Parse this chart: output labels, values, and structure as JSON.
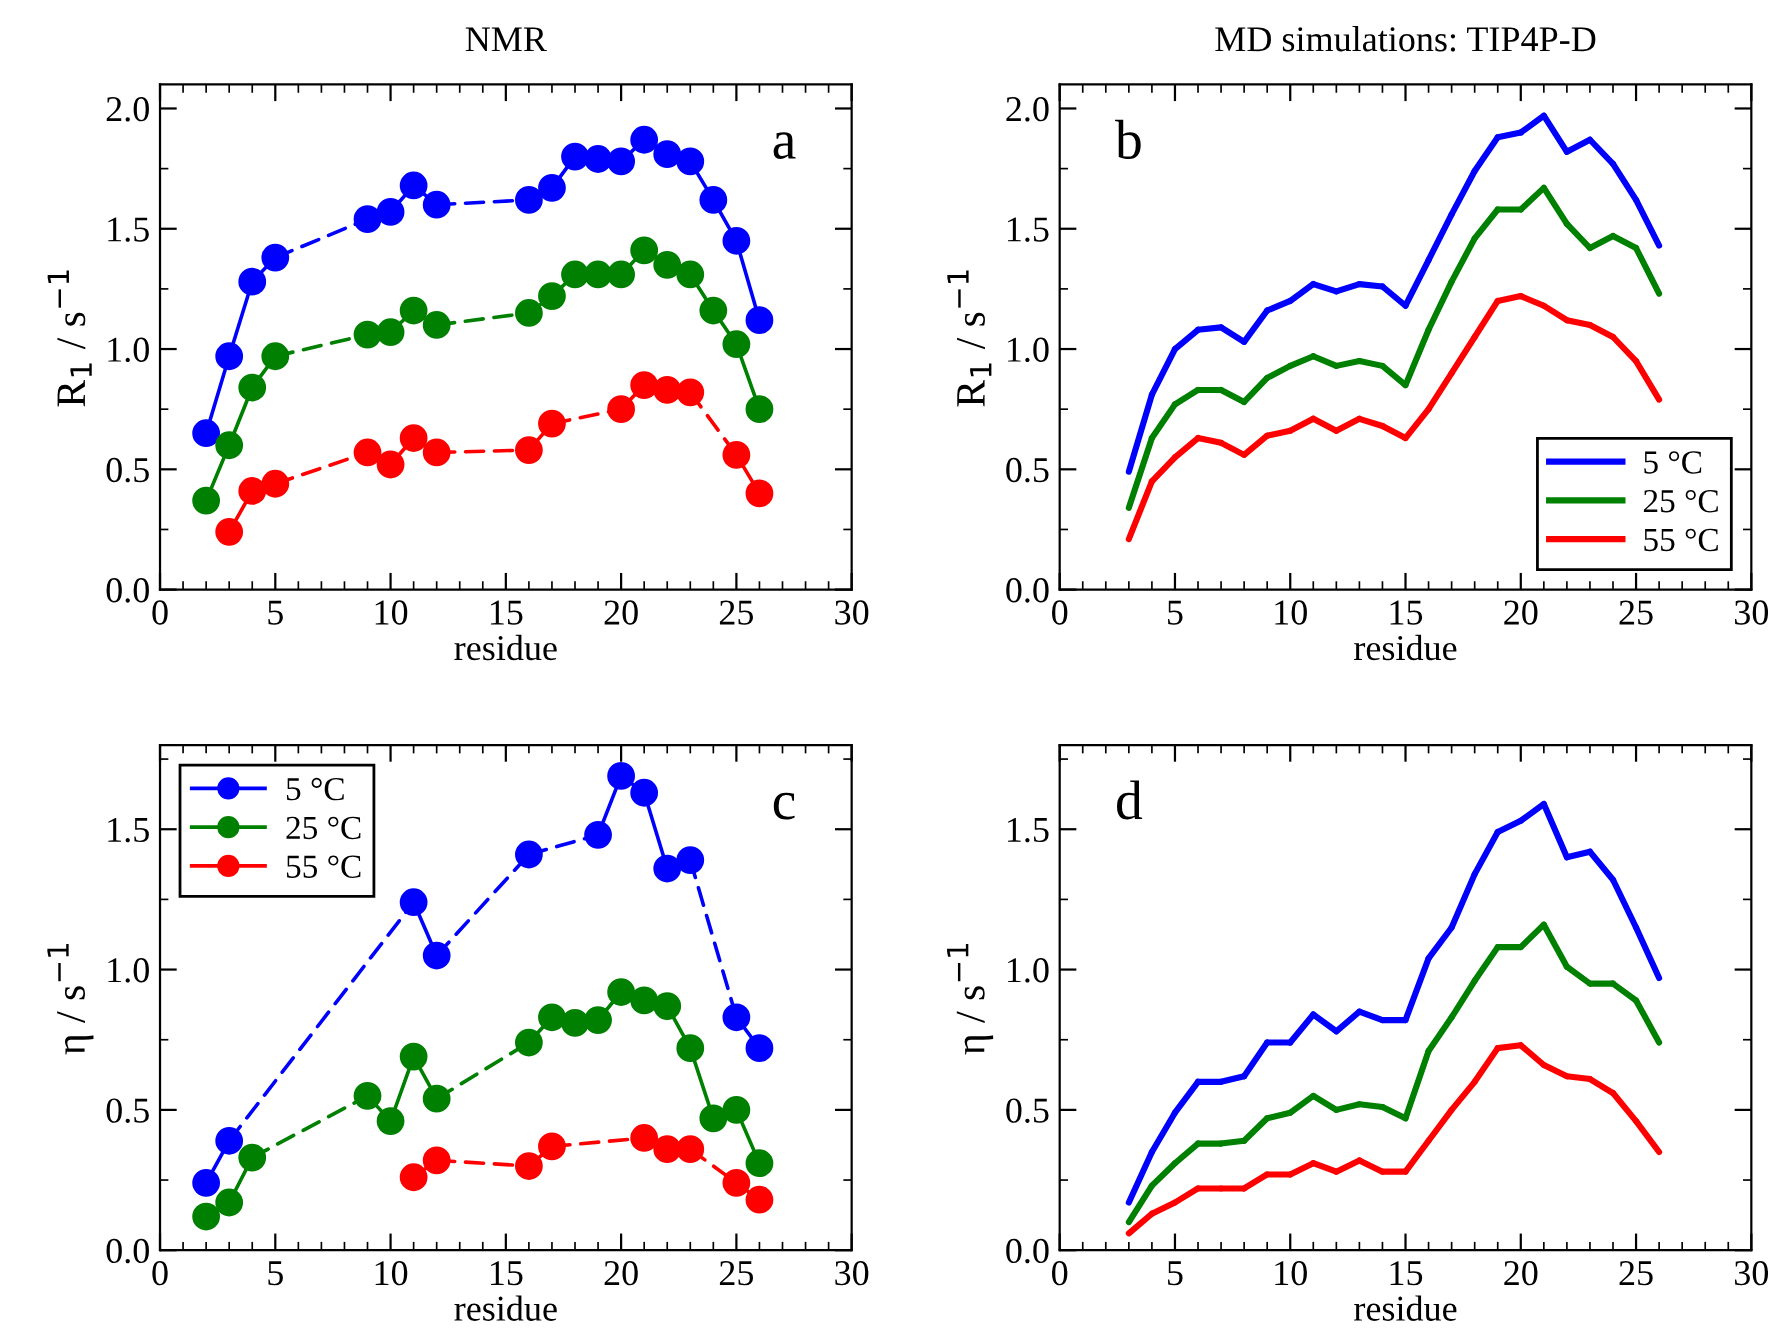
{
  "chart_data": [
    {
      "type": "line",
      "title": "NMR",
      "xlabel": "residue",
      "ylabel": "R$_{1}$ / s$^{−1}$",
      "annotations": [
        "a"
      ],
      "marker": "circle",
      "legend": false,
      "xlim": [
        0,
        30
      ],
      "xticks": [
        0,
        5,
        10,
        15,
        20,
        25,
        30
      ],
      "ylim": [
        0,
        2.1
      ],
      "yticks": [
        {
          "value": 0,
          "label": "0.0"
        },
        {
          "value": 0.5,
          "label": "0.5"
        },
        {
          "value": 1.0,
          "label": "1.0"
        },
        {
          "value": 1.5,
          "label": "1.5"
        },
        {
          "value": 2.0,
          "label": "2.0"
        }
      ],
      "series": [
        {
          "color": "#0000ff",
          "x": [
            2,
            3,
            4,
            5,
            9,
            10,
            11,
            12,
            16,
            17,
            18,
            19,
            20,
            21,
            22,
            23,
            24,
            25,
            26
          ],
          "values": [
            0.65,
            0.97,
            1.28,
            1.38,
            1.54,
            1.57,
            1.68,
            1.6,
            1.62,
            1.67,
            1.8,
            1.79,
            1.78,
            1.87,
            1.81,
            1.78,
            1.62,
            1.45,
            1.12
          ]
        },
        {
          "color": "#008000",
          "x": [
            2,
            3,
            4,
            5,
            9,
            10,
            11,
            12,
            16,
            17,
            18,
            19,
            20,
            21,
            22,
            23,
            24,
            25,
            26
          ],
          "values": [
            0.37,
            0.6,
            0.84,
            0.97,
            1.06,
            1.07,
            1.16,
            1.1,
            1.15,
            1.22,
            1.31,
            1.31,
            1.31,
            1.41,
            1.35,
            1.31,
            1.16,
            1.02,
            0.75
          ]
        },
        {
          "color": "#ff0000",
          "x": [
            3,
            4,
            5,
            9,
            10,
            11,
            12,
            16,
            17,
            20,
            21,
            22,
            23,
            25,
            26
          ],
          "values": [
            0.24,
            0.41,
            0.44,
            0.57,
            0.52,
            0.63,
            0.57,
            0.58,
            0.69,
            0.75,
            0.85,
            0.83,
            0.82,
            0.56,
            0.4
          ]
        }
      ]
    },
    {
      "type": "line",
      "title": "MD simulations: TIP4P-D",
      "xlabel": "residue",
      "ylabel": "R$_{1}$ / s$^{−1}$",
      "annotations": [
        "b"
      ],
      "marker": "none",
      "legend": "bottom right",
      "xlim": [
        0,
        30
      ],
      "xticks": [
        0,
        5,
        10,
        15,
        20,
        25,
        30
      ],
      "ylim": [
        0,
        2.1
      ],
      "yticks": [
        {
          "value": 0,
          "label": "0.0"
        },
        {
          "value": 0.5,
          "label": "0.5"
        },
        {
          "value": 1.0,
          "label": "1.0"
        },
        {
          "value": 1.5,
          "label": "1.5"
        },
        {
          "value": 2.0,
          "label": "2.0"
        }
      ],
      "series": [
        {
          "name": "5 °C",
          "color": "#0000ff",
          "x": [
            3,
            4,
            5,
            6,
            7,
            8,
            9,
            10,
            11,
            12,
            13,
            14,
            15,
            16,
            17,
            18,
            19,
            20,
            21,
            22,
            23,
            24,
            25,
            26
          ],
          "values": [
            0.49,
            0.81,
            1.0,
            1.08,
            1.09,
            1.03,
            1.16,
            1.2,
            1.27,
            1.24,
            1.27,
            1.26,
            1.18,
            1.37,
            1.56,
            1.74,
            1.88,
            1.9,
            1.97,
            1.82,
            1.87,
            1.77,
            1.62,
            1.43
          ]
        },
        {
          "name": "25 °C",
          "color": "#008000",
          "x": [
            3,
            4,
            5,
            6,
            7,
            8,
            9,
            10,
            11,
            12,
            13,
            14,
            15,
            16,
            17,
            18,
            19,
            20,
            21,
            22,
            23,
            24,
            25,
            26
          ],
          "values": [
            0.34,
            0.63,
            0.77,
            0.83,
            0.83,
            0.78,
            0.88,
            0.93,
            0.97,
            0.93,
            0.95,
            0.93,
            0.85,
            1.08,
            1.28,
            1.46,
            1.58,
            1.58,
            1.67,
            1.52,
            1.42,
            1.47,
            1.42,
            1.23
          ]
        },
        {
          "name": "55 °C",
          "color": "#ff0000",
          "x": [
            3,
            4,
            5,
            6,
            7,
            8,
            9,
            10,
            11,
            12,
            13,
            14,
            15,
            16,
            17,
            18,
            19,
            20,
            21,
            22,
            23,
            24,
            25,
            26
          ],
          "values": [
            0.21,
            0.45,
            0.55,
            0.63,
            0.61,
            0.56,
            0.64,
            0.66,
            0.71,
            0.66,
            0.71,
            0.68,
            0.63,
            0.75,
            0.9,
            1.05,
            1.2,
            1.22,
            1.18,
            1.12,
            1.1,
            1.05,
            0.95,
            0.79
          ]
        }
      ]
    },
    {
      "type": "line",
      "xlabel": "residue",
      "ylabel": "η / s$^{−1}$",
      "annotations": [
        "c"
      ],
      "marker": "circle",
      "legend": "top left",
      "xlim": [
        0,
        30
      ],
      "xticks": [
        0,
        5,
        10,
        15,
        20,
        25,
        30
      ],
      "ylim": [
        0,
        1.8
      ],
      "yticks": [
        {
          "value": 0,
          "label": "0.0"
        },
        {
          "value": 0.5,
          "label": "0.5"
        },
        {
          "value": 1.0,
          "label": "1.0"
        },
        {
          "value": 1.5,
          "label": "1.5"
        }
      ],
      "series": [
        {
          "name": "5 °C",
          "color": "#0000ff",
          "x": [
            2,
            3,
            11,
            12,
            16,
            19,
            20,
            21,
            22,
            23,
            25,
            26
          ],
          "values": [
            0.24,
            0.39,
            1.24,
            1.05,
            1.41,
            1.48,
            1.69,
            1.63,
            1.36,
            1.39,
            0.83,
            0.72
          ]
        },
        {
          "name": "25 °C",
          "color": "#008000",
          "x": [
            2,
            3,
            4,
            9,
            10,
            11,
            12,
            16,
            17,
            18,
            19,
            20,
            21,
            22,
            23,
            24,
            25,
            26
          ],
          "values": [
            0.12,
            0.17,
            0.33,
            0.55,
            0.46,
            0.69,
            0.54,
            0.74,
            0.83,
            0.81,
            0.82,
            0.92,
            0.89,
            0.87,
            0.72,
            0.47,
            0.5,
            0.31
          ]
        },
        {
          "name": "55 °C",
          "color": "#ff0000",
          "x": [
            11,
            12,
            16,
            17,
            21,
            22,
            23,
            25,
            26
          ],
          "values": [
            0.26,
            0.32,
            0.3,
            0.37,
            0.4,
            0.36,
            0.36,
            0.24,
            0.18
          ]
        }
      ]
    },
    {
      "type": "line",
      "xlabel": "residue",
      "ylabel": "η / s$^{−1}$",
      "annotations": [
        "d"
      ],
      "marker": "none",
      "legend": false,
      "xlim": [
        0,
        30
      ],
      "xticks": [
        0,
        5,
        10,
        15,
        20,
        25,
        30
      ],
      "ylim": [
        0,
        1.8
      ],
      "yticks": [
        {
          "value": 0,
          "label": "0.0"
        },
        {
          "value": 0.5,
          "label": "0.5"
        },
        {
          "value": 1.0,
          "label": "1.0"
        },
        {
          "value": 1.5,
          "label": "1.5"
        }
      ],
      "series": [
        {
          "color": "#0000ff",
          "x": [
            3,
            4,
            5,
            6,
            7,
            8,
            9,
            10,
            11,
            12,
            13,
            14,
            15,
            16,
            17,
            18,
            19,
            20,
            21,
            22,
            23,
            24,
            25,
            26
          ],
          "values": [
            0.17,
            0.35,
            0.49,
            0.6,
            0.6,
            0.62,
            0.74,
            0.74,
            0.84,
            0.78,
            0.85,
            0.82,
            0.82,
            1.04,
            1.15,
            1.34,
            1.49,
            1.53,
            1.59,
            1.4,
            1.42,
            1.32,
            1.15,
            0.97
          ]
        },
        {
          "color": "#008000",
          "x": [
            3,
            4,
            5,
            6,
            7,
            8,
            9,
            10,
            11,
            12,
            13,
            14,
            15,
            16,
            17,
            18,
            19,
            20,
            21,
            22,
            23,
            24,
            25,
            26
          ],
          "values": [
            0.1,
            0.23,
            0.31,
            0.38,
            0.38,
            0.39,
            0.47,
            0.49,
            0.55,
            0.5,
            0.52,
            0.51,
            0.47,
            0.71,
            0.83,
            0.96,
            1.08,
            1.08,
            1.16,
            1.01,
            0.95,
            0.95,
            0.89,
            0.74
          ]
        },
        {
          "color": "#ff0000",
          "x": [
            3,
            4,
            5,
            6,
            7,
            8,
            9,
            10,
            11,
            12,
            13,
            14,
            15,
            16,
            17,
            18,
            19,
            20,
            21,
            22,
            23,
            24,
            25,
            26
          ],
          "values": [
            0.06,
            0.13,
            0.17,
            0.22,
            0.22,
            0.22,
            0.27,
            0.27,
            0.31,
            0.28,
            0.32,
            0.28,
            0.28,
            0.39,
            0.5,
            0.6,
            0.72,
            0.73,
            0.66,
            0.62,
            0.61,
            0.56,
            0.46,
            0.35
          ]
        }
      ]
    }
  ]
}
